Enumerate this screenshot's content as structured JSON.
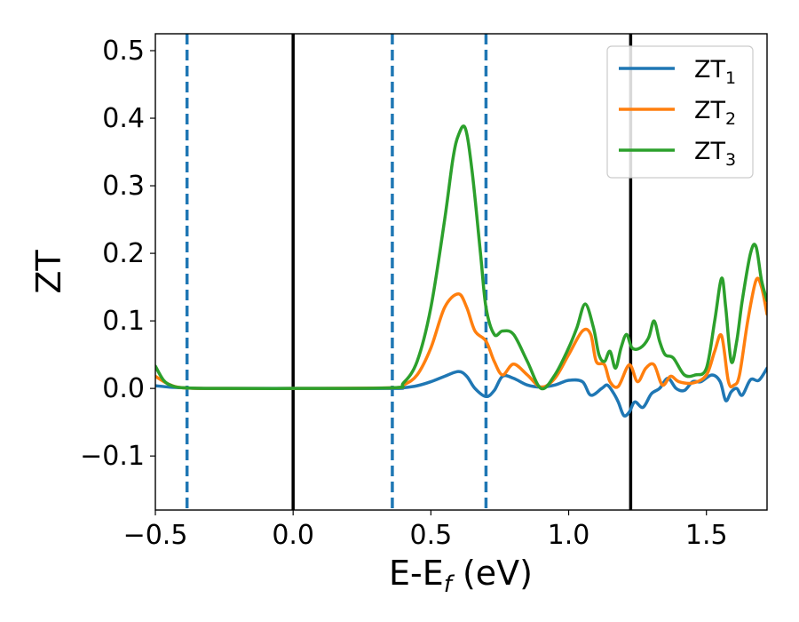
{
  "chart_data": {
    "type": "line",
    "xlabel": {
      "main": "E-E",
      "sub": "f",
      "unit": " (eV)"
    },
    "ylabel": "ZT",
    "xlim": [
      -0.5,
      1.72
    ],
    "ylim": [
      -0.18,
      0.525
    ],
    "xticks": [
      -0.5,
      0.0,
      0.5,
      1.0,
      1.5
    ],
    "xtick_labels": [
      "−0.5",
      "0.0",
      "0.5",
      "1.0",
      "1.5"
    ],
    "yticks": [
      -0.1,
      0.0,
      0.1,
      0.2,
      0.3,
      0.4,
      0.5
    ],
    "ytick_labels": [
      "−0.1",
      "0.0",
      "0.1",
      "0.2",
      "0.3",
      "0.4",
      "0.5"
    ],
    "legend_position": "top-right",
    "vlines": [
      {
        "x": -0.385,
        "style": "dashed",
        "color": "#1f77b4"
      },
      {
        "x": 0.0,
        "style": "solid",
        "color": "#000000"
      },
      {
        "x": 0.36,
        "style": "dashed",
        "color": "#1f77b4"
      },
      {
        "x": 0.7,
        "style": "dashed",
        "color": "#1f77b4"
      },
      {
        "x": 1.225,
        "style": "solid",
        "color": "#000000"
      }
    ],
    "series": [
      {
        "name": "ZT",
        "name_sub": "1",
        "color": "#1f77b4",
        "x": [
          -0.5,
          -0.45,
          -0.4,
          -0.3,
          0.0,
          0.36,
          0.4,
          0.45,
          0.5,
          0.55,
          0.6,
          0.63,
          0.66,
          0.7,
          0.73,
          0.76,
          0.8,
          0.85,
          0.9,
          0.95,
          1.0,
          1.05,
          1.08,
          1.12,
          1.14,
          1.16,
          1.18,
          1.2,
          1.22,
          1.24,
          1.27,
          1.3,
          1.33,
          1.36,
          1.39,
          1.42,
          1.45,
          1.48,
          1.52,
          1.55,
          1.57,
          1.59,
          1.61,
          1.63,
          1.66,
          1.69,
          1.72
        ],
        "y": [
          0.004,
          0.002,
          0.001,
          0.0,
          0.0,
          0.0,
          0.001,
          0.004,
          0.01,
          0.018,
          0.025,
          0.018,
          0.0,
          -0.012,
          -0.003,
          0.018,
          0.015,
          0.005,
          0.002,
          0.005,
          0.012,
          0.01,
          -0.01,
          0.0,
          0.005,
          -0.005,
          -0.02,
          -0.04,
          -0.035,
          -0.02,
          -0.028,
          -0.008,
          0.0,
          0.015,
          0.0,
          -0.003,
          0.01,
          0.01,
          0.02,
          0.01,
          -0.018,
          -0.005,
          0.0,
          -0.01,
          0.013,
          0.012,
          0.03
        ]
      },
      {
        "name": "ZT",
        "name_sub": "2",
        "color": "#ff7f0e",
        "x": [
          -0.5,
          -0.45,
          -0.4,
          -0.3,
          0.0,
          0.36,
          0.4,
          0.45,
          0.5,
          0.55,
          0.6,
          0.63,
          0.66,
          0.7,
          0.73,
          0.76,
          0.8,
          0.85,
          0.9,
          0.95,
          1.0,
          1.05,
          1.08,
          1.1,
          1.13,
          1.15,
          1.18,
          1.22,
          1.25,
          1.28,
          1.31,
          1.34,
          1.37,
          1.4,
          1.45,
          1.5,
          1.53,
          1.555,
          1.58,
          1.6,
          1.62,
          1.65,
          1.68,
          1.7,
          1.72
        ],
        "y": [
          0.018,
          0.006,
          0.001,
          0.0,
          0.0,
          0.001,
          0.005,
          0.02,
          0.06,
          0.12,
          0.14,
          0.12,
          0.085,
          0.07,
          0.04,
          0.02,
          0.036,
          0.02,
          0.002,
          0.015,
          0.05,
          0.085,
          0.08,
          0.04,
          0.035,
          0.01,
          0.003,
          0.035,
          0.01,
          0.03,
          0.035,
          0.005,
          0.018,
          0.01,
          0.008,
          0.02,
          0.055,
          0.078,
          0.01,
          0.005,
          0.02,
          0.1,
          0.16,
          0.15,
          0.11
        ]
      },
      {
        "name": "ZT",
        "name_sub": "3",
        "color": "#2ca02c",
        "x": [
          -0.5,
          -0.47,
          -0.44,
          -0.4,
          -0.3,
          0.0,
          0.36,
          0.4,
          0.45,
          0.5,
          0.55,
          0.58,
          0.6,
          0.625,
          0.65,
          0.68,
          0.7,
          0.73,
          0.76,
          0.8,
          0.85,
          0.9,
          0.95,
          1.0,
          1.03,
          1.06,
          1.09,
          1.11,
          1.13,
          1.15,
          1.17,
          1.19,
          1.21,
          1.23,
          1.26,
          1.29,
          1.31,
          1.33,
          1.35,
          1.38,
          1.42,
          1.46,
          1.5,
          1.53,
          1.555,
          1.57,
          1.59,
          1.61,
          1.63,
          1.66,
          1.68,
          1.7,
          1.72
        ],
        "y": [
          0.033,
          0.012,
          0.004,
          0.001,
          0.0,
          0.0,
          0.001,
          0.008,
          0.04,
          0.12,
          0.25,
          0.34,
          0.375,
          0.385,
          0.32,
          0.2,
          0.12,
          0.08,
          0.085,
          0.08,
          0.04,
          0.0,
          0.02,
          0.06,
          0.09,
          0.125,
          0.09,
          0.05,
          0.04,
          0.055,
          0.03,
          0.06,
          0.08,
          0.06,
          0.06,
          0.075,
          0.1,
          0.07,
          0.05,
          0.045,
          0.02,
          0.02,
          0.03,
          0.1,
          0.163,
          0.12,
          0.04,
          0.07,
          0.13,
          0.2,
          0.21,
          0.16,
          0.13
        ]
      }
    ]
  }
}
